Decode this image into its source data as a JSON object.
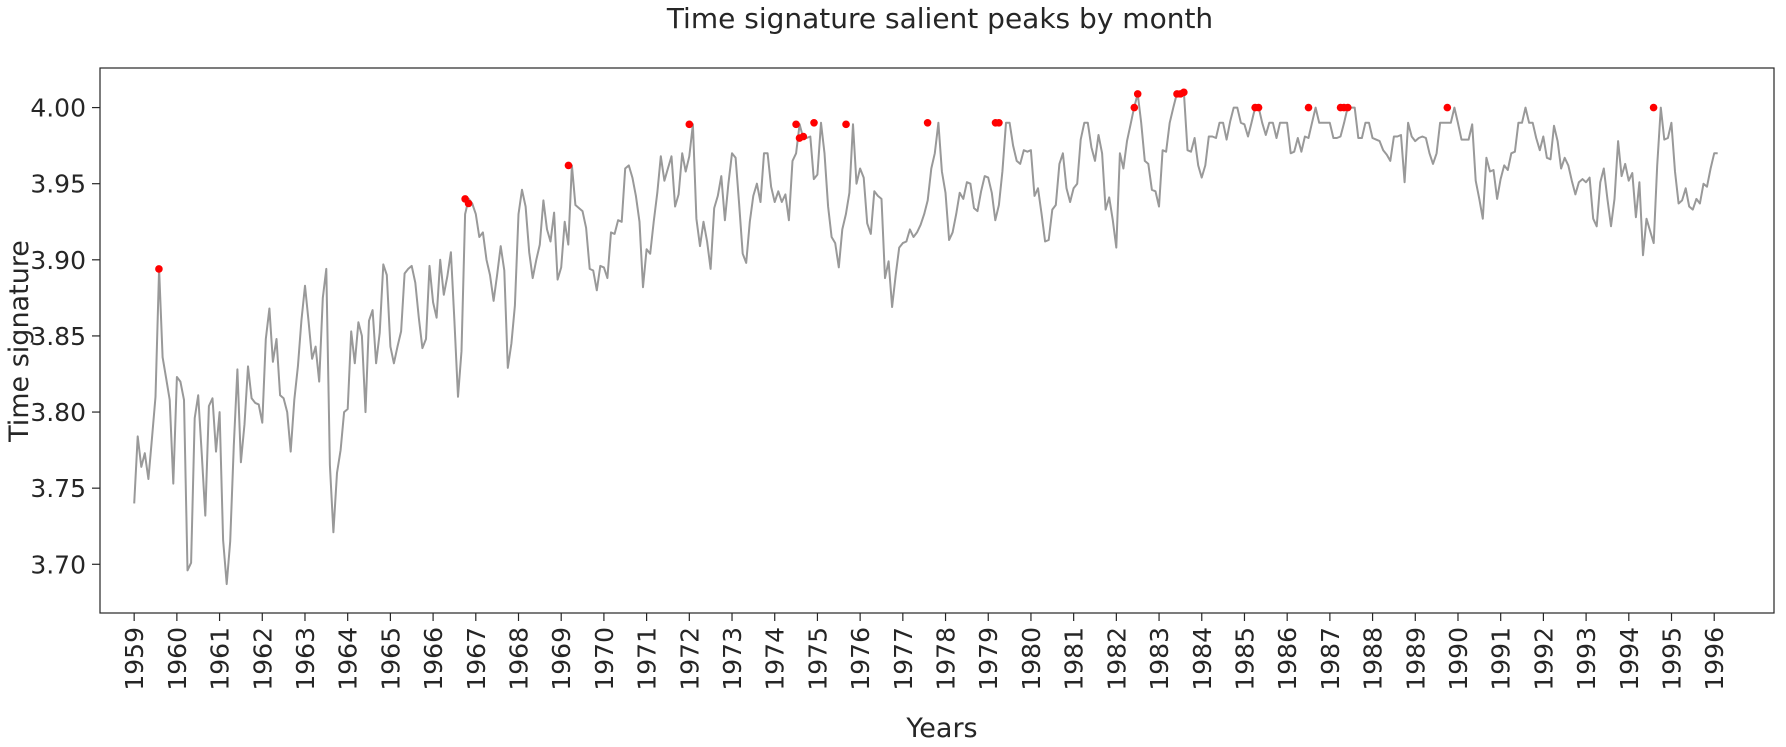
{
  "chart_data": {
    "type": "line",
    "title": "Time signature salient peaks by month",
    "xlabel": "Years",
    "ylabel": "Time signature",
    "xlim": [
      1958.2,
      1997.4
    ],
    "ylim": [
      3.668,
      4.026
    ],
    "x_ticks": [
      "1959",
      "1960",
      "1961",
      "1962",
      "1963",
      "1964",
      "1965",
      "1966",
      "1967",
      "1968",
      "1969",
      "1970",
      "1971",
      "1972",
      "1973",
      "1974",
      "1975",
      "1976",
      "1977",
      "1978",
      "1979",
      "1980",
      "1981",
      "1982",
      "1983",
      "1984",
      "1985",
      "1986",
      "1987",
      "1988",
      "1989",
      "1990",
      "1991",
      "1992",
      "1993",
      "1994",
      "1995",
      "1996"
    ],
    "y_ticks": [
      "3.70",
      "3.75",
      "3.80",
      "3.85",
      "3.90",
      "3.95",
      "4.00"
    ],
    "grid": false,
    "colors": {
      "line": "#999999",
      "peaks": "#ff0000",
      "axes": "#262626"
    },
    "series": [
      {
        "role": "monthly values",
        "start": 1959.0,
        "step": 0.08333,
        "values": [
          3.74,
          3.784,
          3.764,
          3.773,
          3.756,
          3.783,
          3.81,
          3.894,
          3.836,
          3.822,
          3.808,
          3.753,
          3.823,
          3.82,
          3.808,
          3.696,
          3.701,
          3.796,
          3.811,
          3.772,
          3.732,
          3.804,
          3.809,
          3.774,
          3.8,
          3.716,
          3.687,
          3.715,
          3.778,
          3.828,
          3.767,
          3.792,
          3.83,
          3.809,
          3.806,
          3.805,
          3.793,
          3.848,
          3.868,
          3.833,
          3.848,
          3.811,
          3.809,
          3.8,
          3.774,
          3.808,
          3.83,
          3.86,
          3.883,
          3.86,
          3.835,
          3.843,
          3.82,
          3.875,
          3.894,
          3.765,
          3.721,
          3.76,
          3.775,
          3.8,
          3.802,
          3.853,
          3.832,
          3.859,
          3.85,
          3.8,
          3.86,
          3.867,
          3.832,
          3.852,
          3.897,
          3.89,
          3.843,
          3.832,
          3.843,
          3.853,
          3.891,
          3.894,
          3.896,
          3.885,
          3.862,
          3.842,
          3.848,
          3.896,
          3.872,
          3.862,
          3.9,
          3.877,
          3.889,
          3.905,
          3.86,
          3.81,
          3.84,
          3.93,
          3.94,
          3.937,
          3.93,
          3.915,
          3.918,
          3.9,
          3.89,
          3.873,
          3.89,
          3.909,
          3.893,
          3.829,
          3.845,
          3.87,
          3.93,
          3.946,
          3.935,
          3.905,
          3.888,
          3.9,
          3.91,
          3.939,
          3.92,
          3.912,
          3.931,
          3.887,
          3.895,
          3.925,
          3.91,
          3.962,
          3.936,
          3.934,
          3.932,
          3.921,
          3.894,
          3.893,
          3.88,
          3.896,
          3.895,
          3.888,
          3.918,
          3.917,
          3.926,
          3.925,
          3.96,
          3.962,
          3.954,
          3.942,
          3.925,
          3.882,
          3.907,
          3.904,
          3.925,
          3.944,
          3.968,
          3.952,
          3.96,
          3.968,
          3.935,
          3.943,
          3.97,
          3.958,
          3.968,
          3.989,
          3.927,
          3.909,
          3.925,
          3.912,
          3.894,
          3.934,
          3.942,
          3.955,
          3.926,
          3.95,
          3.97,
          3.967,
          3.937,
          3.904,
          3.898,
          3.925,
          3.942,
          3.95,
          3.938,
          3.97,
          3.97,
          3.948,
          3.938,
          3.945,
          3.938,
          3.943,
          3.926,
          3.965,
          3.97,
          3.989,
          3.98,
          3.98,
          3.981,
          3.953,
          3.956,
          3.99,
          3.97,
          3.935,
          3.915,
          3.911,
          3.895,
          3.92,
          3.93,
          3.944,
          3.989,
          3.95,
          3.96,
          3.954,
          3.924,
          3.917,
          3.945,
          3.942,
          3.94,
          3.888,
          3.899,
          3.869,
          3.89,
          3.908,
          3.911,
          3.912,
          3.92,
          3.915,
          3.918,
          3.923,
          3.93,
          3.939,
          3.96,
          3.97,
          3.99,
          3.958,
          3.944,
          3.913,
          3.918,
          3.93,
          3.944,
          3.94,
          3.951,
          3.95,
          3.934,
          3.932,
          3.945,
          3.955,
          3.954,
          3.944,
          3.926,
          3.936,
          3.958,
          3.99,
          3.99,
          3.975,
          3.965,
          3.963,
          3.972,
          3.971,
          3.972,
          3.942,
          3.947,
          3.93,
          3.912,
          3.913,
          3.933,
          3.936,
          3.963,
          3.97,
          3.947,
          3.938,
          3.947,
          3.95,
          3.979,
          3.99,
          3.99,
          3.974,
          3.965,
          3.982,
          3.97,
          3.933,
          3.941,
          3.926,
          3.908,
          3.97,
          3.96,
          3.978,
          3.989,
          4.0,
          4.009,
          3.99,
          3.965,
          3.963,
          3.946,
          3.945,
          3.935,
          3.972,
          3.971,
          3.99,
          4.0,
          4.009,
          4.009,
          4.01,
          3.972,
          3.971,
          3.98,
          3.962,
          3.954,
          3.962,
          3.981,
          3.981,
          3.98,
          3.99,
          3.99,
          3.979,
          3.991,
          4.0,
          4.0,
          3.99,
          3.989,
          3.981,
          3.99,
          4.0,
          4.0,
          3.99,
          3.982,
          3.99,
          3.99,
          3.98,
          3.99,
          3.99,
          3.99,
          3.97,
          3.971,
          3.98,
          3.971,
          3.981,
          3.98,
          3.99,
          4.0,
          3.99,
          3.99,
          3.99,
          3.99,
          3.98,
          3.98,
          3.981,
          3.99,
          4.0,
          4.0,
          4.0,
          3.98,
          3.98,
          3.99,
          3.99,
          3.98,
          3.979,
          3.978,
          3.972,
          3.969,
          3.965,
          3.981,
          3.981,
          3.982,
          3.951,
          3.99,
          3.981,
          3.978,
          3.98,
          3.981,
          3.98,
          3.97,
          3.963,
          3.97,
          3.99,
          3.99,
          3.99,
          3.99,
          4.0,
          3.99,
          3.979,
          3.979,
          3.979,
          3.989,
          3.952,
          3.94,
          3.927,
          3.967,
          3.958,
          3.959,
          3.94,
          3.953,
          3.962,
          3.959,
          3.97,
          3.971,
          3.99,
          3.99,
          4.0,
          3.99,
          3.99,
          3.98,
          3.972,
          3.981,
          3.967,
          3.966,
          3.988,
          3.978,
          3.96,
          3.967,
          3.962,
          3.952,
          3.943,
          3.951,
          3.953,
          3.951,
          3.954,
          3.927,
          3.922,
          3.951,
          3.96,
          3.94,
          3.922,
          3.94,
          3.978,
          3.955,
          3.963,
          3.952,
          3.957,
          3.928,
          3.951,
          3.903,
          3.927,
          3.919,
          3.911,
          3.962,
          4.0,
          3.979,
          3.98,
          3.99,
          3.958,
          3.937,
          3.939,
          3.947,
          3.935,
          3.933,
          3.94,
          3.937,
          3.95,
          3.948,
          3.96,
          3.97,
          3.97
        ]
      },
      {
        "role": "salient peaks",
        "points": [
          [
            1959.58,
            3.894
          ],
          [
            1966.75,
            3.94
          ],
          [
            1966.83,
            3.937
          ],
          [
            1969.17,
            3.962
          ],
          [
            1972.0,
            3.989
          ],
          [
            1974.5,
            3.989
          ],
          [
            1974.58,
            3.98
          ],
          [
            1974.67,
            3.981
          ],
          [
            1974.92,
            3.99
          ],
          [
            1975.67,
            3.989
          ],
          [
            1977.58,
            3.99
          ],
          [
            1979.17,
            3.99
          ],
          [
            1979.25,
            3.99
          ],
          [
            1982.42,
            4.0
          ],
          [
            1982.5,
            4.009
          ],
          [
            1983.42,
            4.009
          ],
          [
            1983.5,
            4.009
          ],
          [
            1983.58,
            4.01
          ],
          [
            1985.25,
            4.0
          ],
          [
            1985.33,
            4.0
          ],
          [
            1986.5,
            4.0
          ],
          [
            1987.25,
            4.0
          ],
          [
            1987.33,
            4.0
          ],
          [
            1987.42,
            4.0
          ],
          [
            1989.75,
            4.0
          ],
          [
            1994.58,
            4.0
          ]
        ]
      }
    ]
  }
}
